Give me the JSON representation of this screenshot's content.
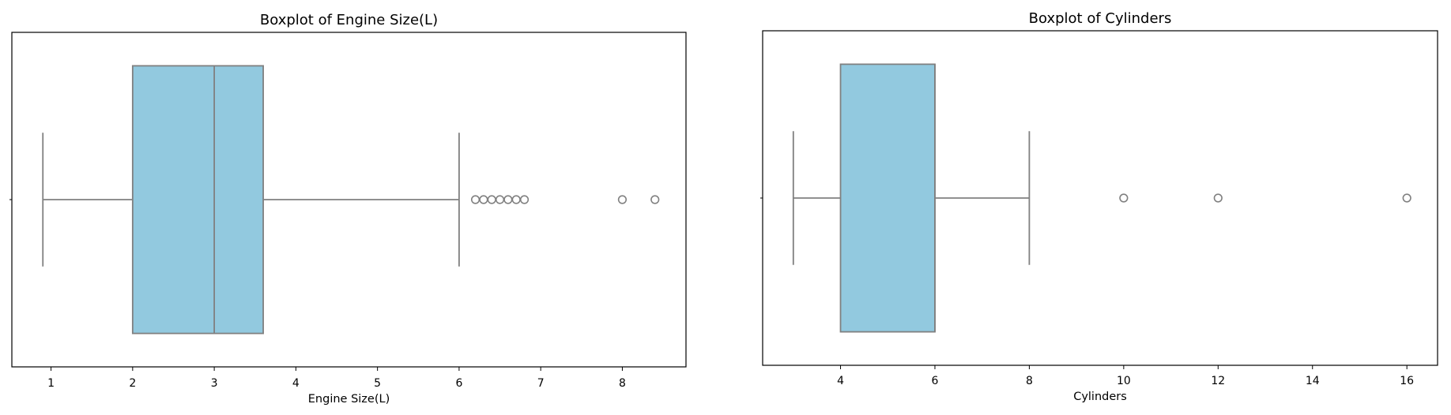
{
  "chart_data": [
    {
      "type": "boxplot",
      "title": "Boxplot of Engine Size(L)",
      "xlabel": "Engine Size(L)",
      "ylabel": "",
      "xlim": [
        0.52,
        8.78
      ],
      "xticks": [
        1,
        2,
        3,
        4,
        5,
        6,
        7,
        8
      ],
      "grid": false,
      "legend": "none",
      "box": {
        "whisker_low": 0.9,
        "q1": 2.0,
        "median": 3.0,
        "q3": 3.6,
        "whisker_high": 6.0
      },
      "outliers": [
        6.2,
        6.3,
        6.4,
        6.5,
        6.6,
        6.7,
        6.8,
        8.0,
        8.4
      ],
      "colors": {
        "box_fill": "#92c9df",
        "line": "#808080"
      }
    },
    {
      "type": "boxplot",
      "title": "Boxplot of Cylinders",
      "xlabel": "Cylinders",
      "ylabel": "",
      "xlim": [
        2.35,
        16.65
      ],
      "xticks": [
        4,
        6,
        8,
        10,
        12,
        14,
        16
      ],
      "grid": false,
      "legend": "none",
      "box": {
        "whisker_low": 3,
        "q1": 4,
        "median": 6,
        "q3": 6,
        "whisker_high": 8
      },
      "outliers": [
        10,
        12,
        16
      ],
      "colors": {
        "box_fill": "#92c9df",
        "line": "#808080"
      }
    }
  ]
}
